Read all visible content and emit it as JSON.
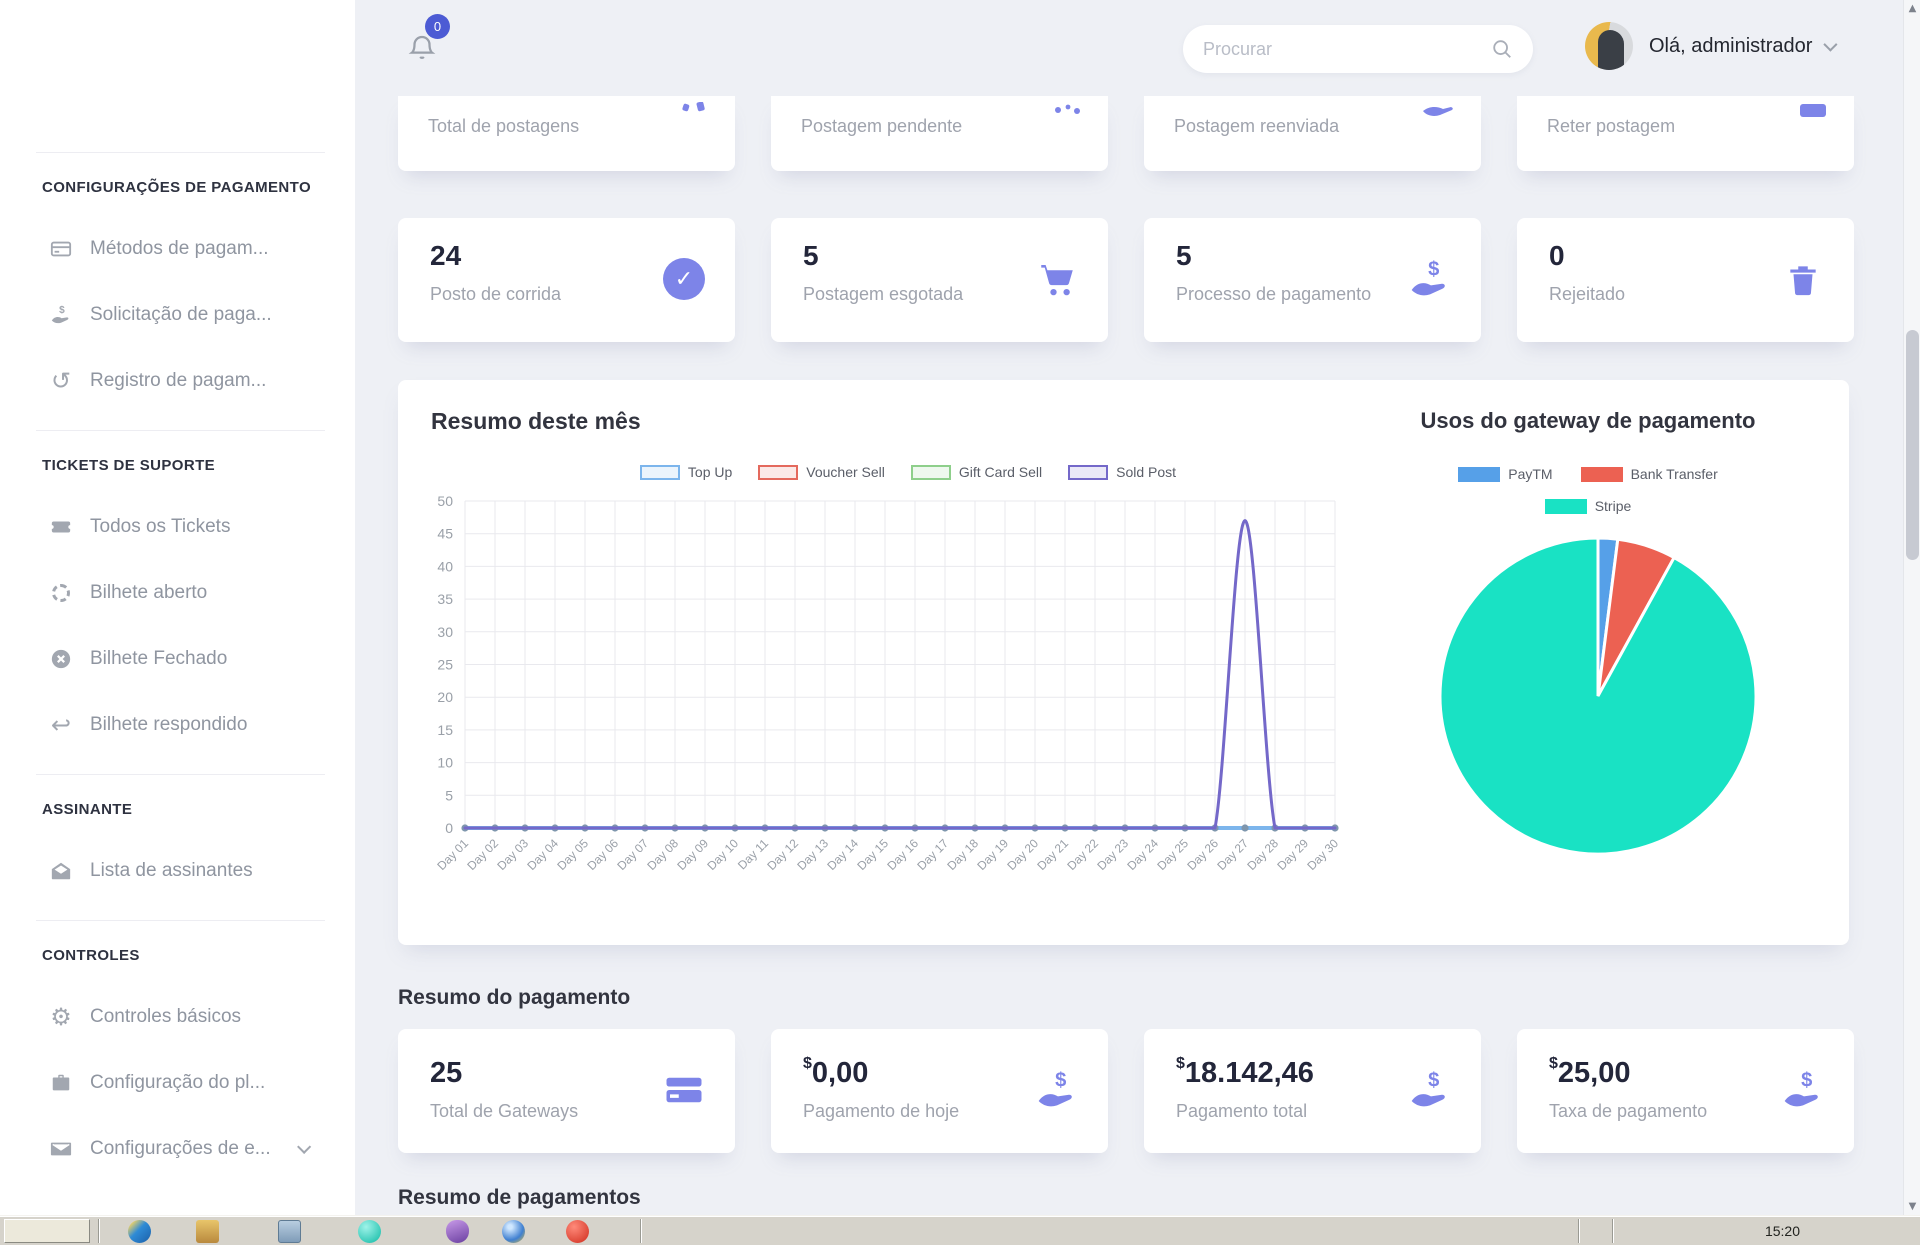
{
  "theme": {
    "accent": "#7d84e8",
    "badge_blue": "#4c5bd4",
    "sidebar_bg": "#ffffff",
    "main_bg": "#eef0f5"
  },
  "topbar": {
    "notification_count": "0",
    "search_placeholder": "Procurar",
    "user_greeting": "Olá, administrador"
  },
  "sidebar": {
    "sections": [
      {
        "header": "CONFIGURAÇÕES DE PAGAMENTO",
        "items": [
          {
            "label": "Métodos de pagam...",
            "icon": "credit-card"
          },
          {
            "label": "Solicitação de paga...",
            "icon": "hand-dollar"
          },
          {
            "label": "Registro de pagam...",
            "icon": "history"
          }
        ]
      },
      {
        "header": "TICKETS DE SUPORTE",
        "items": [
          {
            "label": "Todos os Tickets",
            "icon": "ticket"
          },
          {
            "label": "Bilhete aberto",
            "icon": "open-spinner"
          },
          {
            "label": "Bilhete Fechado",
            "icon": "x-circle"
          },
          {
            "label": "Bilhete respondido",
            "icon": "reply"
          }
        ]
      },
      {
        "header": "ASSINANTE",
        "items": [
          {
            "label": "Lista de assinantes",
            "icon": "envelope-open"
          }
        ]
      },
      {
        "header": "CONTROLES",
        "items": [
          {
            "label": "Controles básicos",
            "icon": "gears"
          },
          {
            "label": "Configuração do pl...",
            "icon": "briefcase"
          },
          {
            "label": "Configurações de e...",
            "icon": "envelope"
          }
        ]
      }
    ]
  },
  "cards_row_top": [
    {
      "label": "Total de postagens"
    },
    {
      "label": "Postagem pendente"
    },
    {
      "label": "Postagem reenviada"
    },
    {
      "label": "Reter postagem"
    }
  ],
  "cards_row_stats": [
    {
      "value": "24",
      "label": "Posto de corrida",
      "icon": "check-circle"
    },
    {
      "value": "5",
      "label": "Postagem esgotada",
      "icon": "cart"
    },
    {
      "value": "5",
      "label": "Processo de pagamento",
      "icon": "hand-dollar"
    },
    {
      "value": "0",
      "label": "Rejeitado",
      "icon": "trash"
    }
  ],
  "chart_data": [
    {
      "type": "line",
      "title": "Resumo deste mês",
      "categories": [
        "Day 01",
        "Day 02",
        "Day 03",
        "Day 04",
        "Day 05",
        "Day 06",
        "Day 07",
        "Day 08",
        "Day 09",
        "Day 10",
        "Day 11",
        "Day 12",
        "Day 13",
        "Day 14",
        "Day 15",
        "Day 16",
        "Day 17",
        "Day 18",
        "Day 19",
        "Day 20",
        "Day 21",
        "Day 22",
        "Day 23",
        "Day 24",
        "Day 25",
        "Day 26",
        "Day 27",
        "Day 28",
        "Day 29",
        "Day 30"
      ],
      "series": [
        {
          "name": "Top Up",
          "color": "#7cb5ec",
          "values": [
            0,
            0,
            0,
            0,
            0,
            0,
            0,
            0,
            0,
            0,
            0,
            0,
            0,
            0,
            0,
            0,
            0,
            0,
            0,
            0,
            0,
            0,
            0,
            0,
            0,
            0,
            0,
            0,
            0,
            0
          ]
        },
        {
          "name": "Voucher Sell",
          "color": "#e4695d",
          "values": [
            0,
            0,
            0,
            0,
            0,
            0,
            0,
            0,
            0,
            0,
            0,
            0,
            0,
            0,
            0,
            0,
            0,
            0,
            0,
            0,
            0,
            0,
            0,
            0,
            0,
            0,
            0,
            0,
            0,
            0
          ]
        },
        {
          "name": "Gift Card Sell",
          "color": "#8ecf8b",
          "values": [
            0,
            0,
            0,
            0,
            0,
            0,
            0,
            0,
            0,
            0,
            0,
            0,
            0,
            0,
            0,
            0,
            0,
            0,
            0,
            0,
            0,
            0,
            0,
            0,
            0,
            0,
            0,
            0,
            0,
            0
          ]
        },
        {
          "name": "Sold Post",
          "color": "#7468c9",
          "values": [
            0,
            0,
            0,
            0,
            0,
            0,
            0,
            0,
            0,
            0,
            0,
            0,
            0,
            0,
            0,
            0,
            0,
            0,
            0,
            0,
            0,
            0,
            0,
            0,
            0,
            0,
            47,
            0,
            0,
            0
          ]
        }
      ],
      "ylim": [
        0,
        50
      ],
      "ytick_step": 5,
      "grid": true,
      "legend_position": "top"
    },
    {
      "type": "pie",
      "title": "Usos do gateway de pagamento",
      "labels": [
        "PayTM",
        "Bank Transfer",
        "Stripe"
      ],
      "values": [
        2,
        6,
        92
      ],
      "colors": [
        "#56a0e8",
        "#ec6152",
        "#19e2c4"
      ],
      "legend_position": "top"
    }
  ],
  "payment": {
    "heading": "Resumo do pagamento",
    "cards": [
      {
        "currency": "",
        "value": "25",
        "label": "Total de Gateways",
        "icon": "credit-card"
      },
      {
        "currency": "$",
        "value": "0,00",
        "label": "Pagamento de hoje",
        "icon": "hand-dollar"
      },
      {
        "currency": "$",
        "value": "18.142,46",
        "label": "Pagamento total",
        "icon": "hand-dollar"
      },
      {
        "currency": "$",
        "value": "25,00",
        "label": "Taxa de pagamento",
        "icon": "hand-dollar"
      }
    ]
  },
  "bottom": {
    "heading": "Resumo de pagamentos"
  },
  "taskbar": {
    "clock": "15:20"
  }
}
